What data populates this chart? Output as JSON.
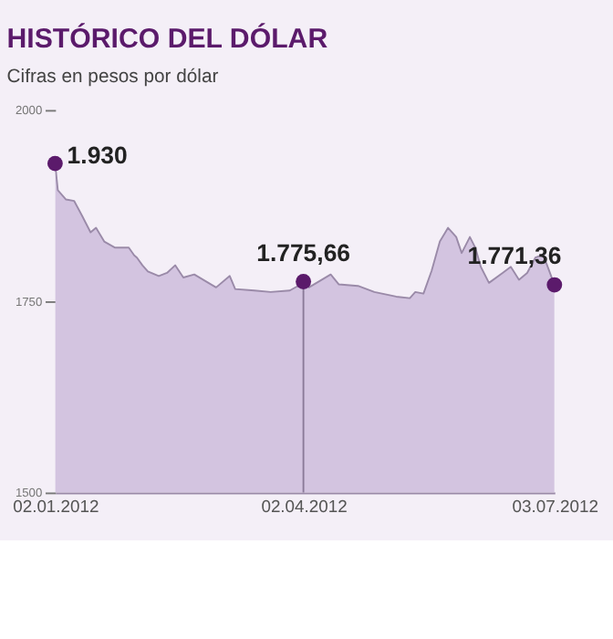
{
  "chart_data": {
    "type": "area",
    "title": "HISTÓRICO DEL DÓLAR",
    "subtitle": "Cifras en pesos por dólar",
    "x": [
      "2012-01-02",
      "2012-01-03",
      "2012-01-06",
      "2012-01-09",
      "2012-01-12",
      "2012-01-15",
      "2012-01-17",
      "2012-01-20",
      "2012-01-24",
      "2012-01-29",
      "2012-01-31",
      "2012-02-01",
      "2012-02-03",
      "2012-02-05",
      "2012-02-09",
      "2012-02-12",
      "2012-02-15",
      "2012-02-18",
      "2012-02-22",
      "2012-03-01",
      "2012-03-06",
      "2012-03-08",
      "2012-03-15",
      "2012-03-21",
      "2012-03-28",
      "2012-03-31",
      "2012-04-02",
      "2012-04-04",
      "2012-04-12",
      "2012-04-15",
      "2012-04-22",
      "2012-04-28",
      "2012-05-06",
      "2012-05-11",
      "2012-05-13",
      "2012-05-16",
      "2012-05-19",
      "2012-05-22",
      "2012-05-25",
      "2012-05-28",
      "2012-05-30",
      "2012-06-02",
      "2012-06-04",
      "2012-06-06",
      "2012-06-09",
      "2012-06-14",
      "2012-06-17",
      "2012-06-20",
      "2012-06-23",
      "2012-06-26",
      "2012-06-29",
      "2012-06-30",
      "2012-07-03"
    ],
    "series": [
      {
        "color": "#d3c4e0",
        "values": [
          1930,
          1895,
          1883,
          1881,
          1861,
          1840,
          1846,
          1828,
          1820,
          1820,
          1810,
          1807,
          1797,
          1789,
          1783,
          1787,
          1797,
          1781,
          1785,
          1768,
          1783,
          1766,
          1764,
          1762,
          1764,
          1770,
          1775.66,
          1768,
          1785,
          1772,
          1770,
          1762,
          1756,
          1754,
          1762,
          1760,
          1790,
          1828,
          1846,
          1834,
          1813,
          1834,
          1820,
          1795,
          1774,
          1787,
          1795,
          1778,
          1787,
          1807,
          1811,
          1800,
          1771.36
        ]
      }
    ],
    "xlim": [
      "2012-01-02",
      "2012-07-03"
    ],
    "xticks": [
      {
        "value": "2012-01-02",
        "label": "02.01.2012"
      },
      {
        "value": "2012-04-02",
        "label": "02.04.2012"
      },
      {
        "value": "2012-07-03",
        "label": "03.07.2012"
      }
    ],
    "ylim": [
      1500,
      2000
    ],
    "yticks": [
      1500,
      1750,
      2000
    ],
    "grid": false,
    "ref_lines": [
      {
        "axis": "x",
        "value": "2012-04-02",
        "color": "#8a7a99"
      }
    ],
    "annotations": [
      {
        "text": "1.930",
        "x": "2012-01-02",
        "y": 1930
      },
      {
        "text": "1.775,66",
        "x": "2012-04-02",
        "y": 1775.66
      },
      {
        "text": "1.771,36",
        "x": "2012-07-03",
        "y": 1771.36
      }
    ]
  }
}
